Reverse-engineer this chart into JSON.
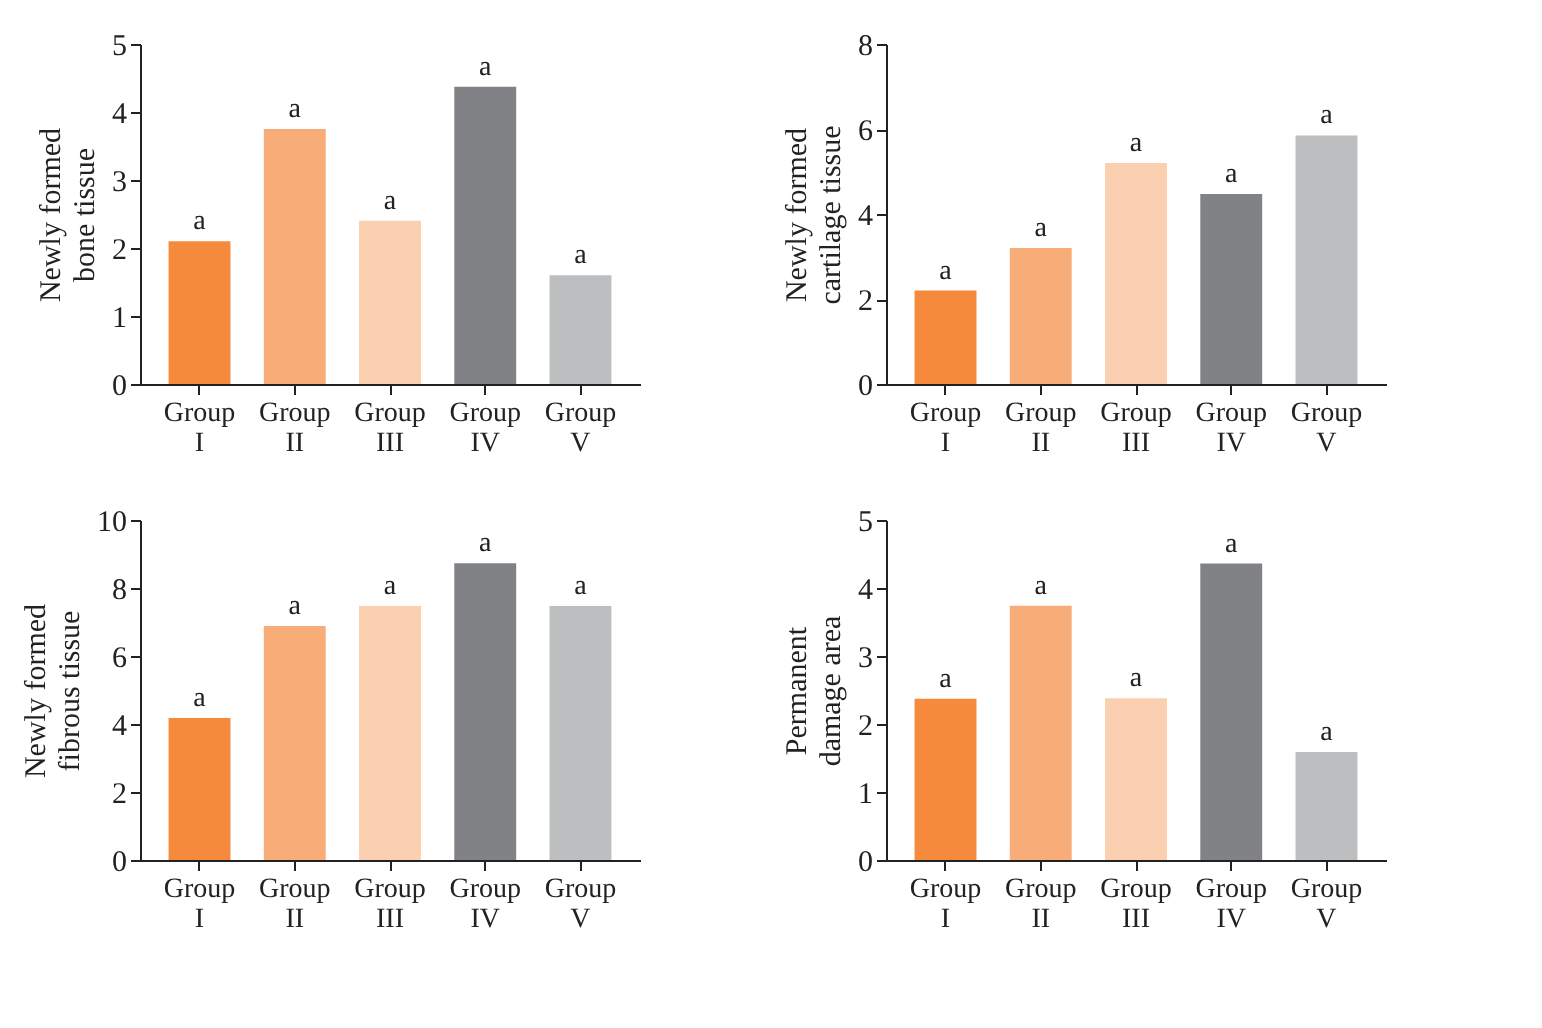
{
  "chart_data": [
    {
      "type": "bar",
      "ylabel": "Newly formed bone tissue",
      "categories": [
        "Group I",
        "Group II",
        "Group III",
        "Group IV",
        "Group V"
      ],
      "values": [
        2.1,
        3.75,
        2.4,
        4.37,
        1.6
      ],
      "colors": [
        "#f58a3c",
        "#f8ad78",
        "#fbd0b0",
        "#808285",
        "#bcbec0"
      ],
      "ylim": [
        0,
        5
      ],
      "yticks": [
        0,
        1,
        2,
        3,
        4,
        5
      ],
      "grid": false,
      "annotations": [
        {
          "text": "a",
          "x": "Group I",
          "y": 2.1
        },
        {
          "text": "a",
          "x": "Group II",
          "y": 3.75
        },
        {
          "text": "a",
          "x": "Group III",
          "y": 2.4
        },
        {
          "text": "a",
          "x": "Group IV",
          "y": 4.37
        },
        {
          "text": "a",
          "x": "Group V",
          "y": 1.6
        }
      ]
    },
    {
      "type": "bar",
      "ylabel": "Newly formed cartilage tissue",
      "categories": [
        "Group I",
        "Group II",
        "Group III",
        "Group IV",
        "Group V"
      ],
      "values": [
        2.2,
        3.2,
        5.2,
        4.47,
        5.85
      ],
      "colors": [
        "#f58a3c",
        "#f8ad78",
        "#fbd0b0",
        "#808285",
        "#bcbec0"
      ],
      "ylim": [
        0,
        8
      ],
      "yticks": [
        0,
        2,
        4,
        6,
        8
      ],
      "grid": false,
      "annotations": [
        {
          "text": "a",
          "x": "Group I",
          "y": 2.2
        },
        {
          "text": "a",
          "x": "Group II",
          "y": 3.2
        },
        {
          "text": "a",
          "x": "Group III",
          "y": 5.2
        },
        {
          "text": "a",
          "x": "Group IV",
          "y": 4.47
        },
        {
          "text": "a",
          "x": "Group V",
          "y": 5.85
        }
      ]
    },
    {
      "type": "bar",
      "ylabel": "Newly formed fibrous tissue",
      "categories": [
        "Group I",
        "Group II",
        "Group III",
        "Group IV",
        "Group V"
      ],
      "values": [
        4.18,
        6.88,
        7.47,
        8.73,
        7.47
      ],
      "colors": [
        "#f58a3c",
        "#f8ad78",
        "#fbd0b0",
        "#808285",
        "#bcbec0"
      ],
      "ylim": [
        0,
        10
      ],
      "yticks": [
        0,
        2,
        4,
        6,
        8,
        10
      ],
      "grid": false,
      "annotations": [
        {
          "text": "a",
          "x": "Group I",
          "y": 4.18
        },
        {
          "text": "a",
          "x": "Group II",
          "y": 6.88
        },
        {
          "text": "a",
          "x": "Group III",
          "y": 7.47
        },
        {
          "text": "a",
          "x": "Group IV",
          "y": 8.73
        },
        {
          "text": "a",
          "x": "Group V",
          "y": 7.47
        }
      ]
    },
    {
      "type": "bar",
      "ylabel": "Permanent damage area",
      "categories": [
        "Group I",
        "Group II",
        "Group III",
        "Group IV",
        "Group V"
      ],
      "values": [
        2.37,
        3.74,
        2.38,
        4.36,
        1.59
      ],
      "colors": [
        "#f58a3c",
        "#f8ad78",
        "#fbd0b0",
        "#808285",
        "#bcbec0"
      ],
      "ylim": [
        0,
        5
      ],
      "yticks": [
        0,
        1,
        2,
        3,
        4,
        5
      ],
      "grid": false,
      "annotations": [
        {
          "text": "a",
          "x": "Group I",
          "y": 2.37
        },
        {
          "text": "a",
          "x": "Group II",
          "y": 3.74
        },
        {
          "text": "a",
          "x": "Group III",
          "y": 2.38
        },
        {
          "text": "a",
          "x": "Group IV",
          "y": 4.36
        },
        {
          "text": "a",
          "x": "Group V",
          "y": 1.59
        }
      ]
    }
  ]
}
